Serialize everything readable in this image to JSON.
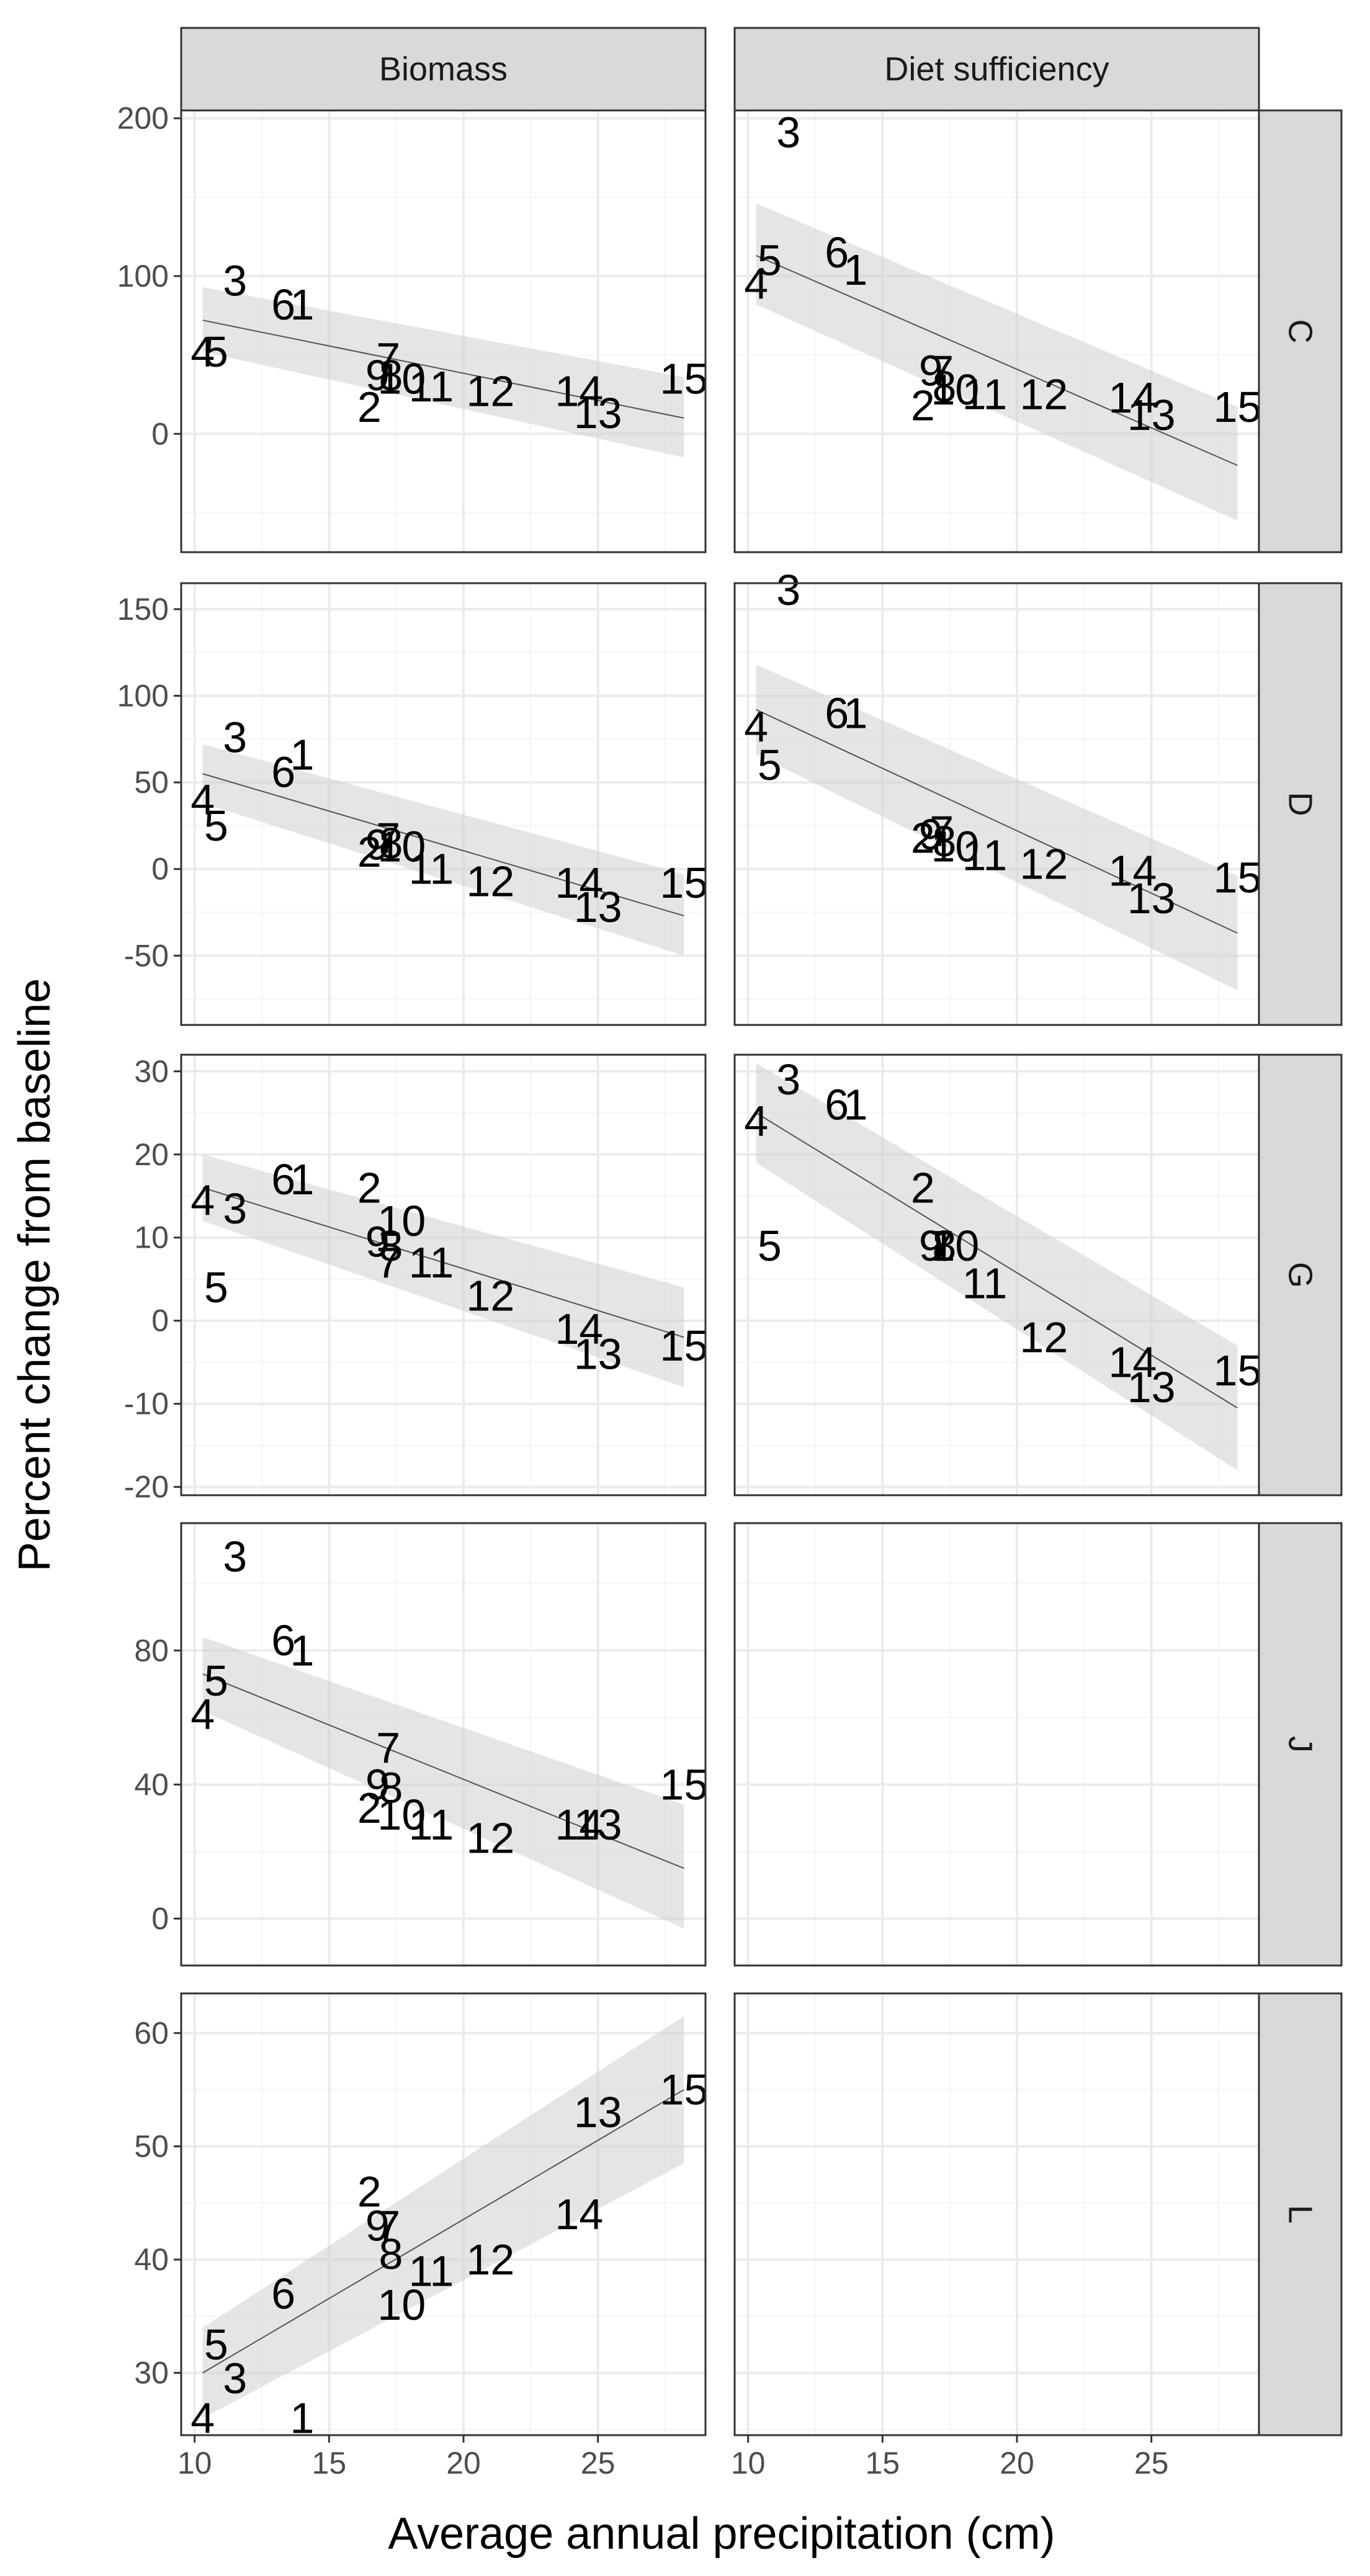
{
  "chart_data": {
    "type": "scatter",
    "facet_layout": "grid",
    "xlabel": "Average annual precipitation (cm)",
    "ylabel": "Percent change from baseline",
    "x_ticks": [
      "10",
      "15",
      "20",
      "25"
    ],
    "xlim": [
      9.5,
      29.0
    ],
    "col_strips": [
      "Biomass",
      "Diet sufficiency"
    ],
    "row_strips": [
      "C",
      "D",
      "G",
      "J",
      "L"
    ],
    "point_labels": [
      "1",
      "2",
      "3",
      "4",
      "5",
      "6",
      "7",
      "8",
      "9",
      "10",
      "11",
      "12",
      "13",
      "14",
      "15"
    ],
    "x_values": [
      14.0,
      16.5,
      11.5,
      10.3,
      10.8,
      13.3,
      17.2,
      17.3,
      16.8,
      17.7,
      18.8,
      21.0,
      25.0,
      24.3,
      28.2
    ],
    "rows": [
      {
        "strip": "C",
        "ylim": [
          -75,
          205
        ],
        "y_ticks": [
          "0",
          "100",
          "200"
        ],
        "panels": [
          {
            "col": "Biomass",
            "y": [
              82,
              17,
              97,
              52,
              52,
              82,
              48,
              37,
              37,
              35,
              30,
              27,
              13,
              27,
              35
            ],
            "fit": [
              72,
              10
            ],
            "ci_lo": [
              52,
              -15
            ],
            "ci_hi": [
              93,
              36
            ]
          },
          {
            "col": "Diet sufficiency",
            "y": [
              104,
              18,
              191,
              95,
              110,
              115,
              40,
              30,
              40,
              28,
              25,
              25,
              12,
              23,
              17
            ],
            "fit": [
              113,
              -20
            ],
            "ci_lo": [
              82,
              -55
            ],
            "ci_hi": [
              146,
              17
            ]
          }
        ]
      },
      {
        "strip": "D",
        "ylim": [
          -90,
          165
        ],
        "y_ticks": [
          "-50",
          "0",
          "50",
          "100",
          "150"
        ],
        "panels": [
          {
            "col": "Biomass",
            "y": [
              66,
              10,
              76,
              40,
              25,
              56,
              18,
              15,
              14,
              13,
              0,
              -7,
              -22,
              -8,
              -8
            ],
            "fit": [
              55,
              -27
            ],
            "ci_lo": [
              38,
              -50
            ],
            "ci_hi": [
              72,
              -3
            ]
          },
          {
            "col": "Diet sufficiency",
            "y": [
              90,
              18,
              161,
              82,
              60,
              90,
              22,
              16,
              20,
              13,
              8,
              3,
              -17,
              -1,
              -5
            ],
            "fit": [
              92,
              -37
            ],
            "ci_lo": [
              66,
              -70
            ],
            "ci_hi": [
              118,
              -4
            ]
          }
        ]
      },
      {
        "strip": "G",
        "ylim": [
          -21,
          32
        ],
        "y_ticks": [
          "-20",
          "-10",
          "0",
          "10",
          "20",
          "30"
        ],
        "panels": [
          {
            "col": "Biomass",
            "y": [
              17,
              16,
              13.5,
              14.5,
              4,
              17,
              7,
              9,
              9.5,
              12,
              7,
              3,
              -4,
              -1,
              -3
            ],
            "fit": [
              16,
              -2
            ],
            "ci_lo": [
              12,
              -8
            ],
            "ci_hi": [
              20,
              4
            ]
          },
          {
            "col": "Diet sufficiency",
            "y": [
              26,
              16,
              29,
              24,
              9,
              26,
              9,
              9,
              9,
              9,
              4.5,
              -2,
              -8,
              -5,
              -6
            ],
            "fit": [
              25,
              -10.5
            ],
            "ci_lo": [
              19,
              -18
            ],
            "ci_hi": [
              31,
              -3
            ]
          }
        ]
      },
      {
        "strip": "J",
        "ylim": [
          -14,
          118
        ],
        "y_ticks": [
          "0",
          "40",
          "80"
        ],
        "panels": [
          {
            "col": "Biomass",
            "y": [
              80,
              33,
              108,
              61,
              71,
              83,
              51,
              39,
              40,
              31,
              28,
              24,
              28,
              28,
              40
            ],
            "fit": [
              73,
              15
            ],
            "ci_lo": [
              62,
              -3
            ],
            "ci_hi": [
              84,
              34
            ]
          },
          {
            "col": "Diet sufficiency",
            "empty": true
          }
        ]
      },
      {
        "strip": "L",
        "ylim": [
          24.5,
          63.5
        ],
        "y_ticks": [
          "30",
          "40",
          "50",
          "60"
        ],
        "panels": [
          {
            "col": "Biomass",
            "y": [
              26,
              46,
              29.5,
              26,
              32.5,
              37,
              43,
              40.5,
              43,
              36,
              39,
              40,
              53,
              44,
              55
            ],
            "fit": [
              30,
              55
            ],
            "ci_lo": [
              26,
              48.5
            ],
            "ci_hi": [
              34,
              61.5
            ]
          },
          {
            "col": "Diet sufficiency",
            "empty": true
          }
        ]
      }
    ],
    "colors": {
      "strip_fill": "#d9d9d9",
      "grid_major": "#ebebeb",
      "grid_minor": "#f5f5f5",
      "ribbon": "#d0d0d0",
      "fit_line": "#555555",
      "panel_border": "#333333"
    }
  }
}
